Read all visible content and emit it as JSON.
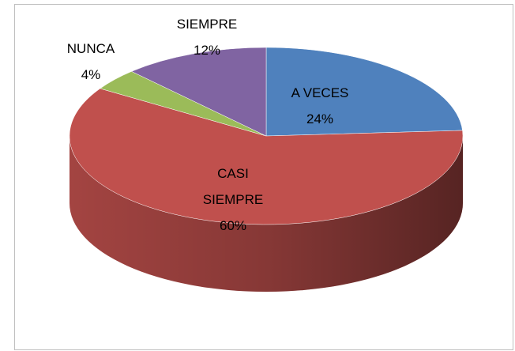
{
  "chart_data": {
    "type": "pie",
    "categories": [
      "A VECES",
      "CASI SIEMPRE",
      "NUNCA",
      "SIEMPRE"
    ],
    "values": [
      24,
      60,
      4,
      12
    ],
    "value_labels": [
      "24%",
      "60%",
      "4%",
      "12%"
    ],
    "colors": [
      "#4f81bd",
      "#c0504d",
      "#9bbb59",
      "#8064a2"
    ]
  }
}
